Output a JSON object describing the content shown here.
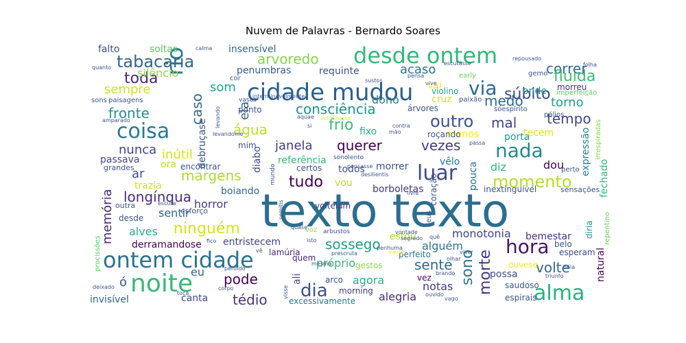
{
  "chart_data": {
    "type": "wordcloud",
    "title": "Nuvem de Palavras - Bernardo Soares",
    "words": [
      {
        "text": "texto texto",
        "color": "#2c6e8e"
      },
      {
        "text": "desde ontem",
        "color": "#35b779"
      },
      {
        "text": "cidade mudou",
        "color": "#2c5f8a"
      },
      {
        "text": "ontem cidade",
        "color": "#2d718e"
      },
      {
        "text": "noite",
        "color": "#37b878"
      },
      {
        "text": "coisa",
        "color": "#2a788e"
      },
      {
        "text": "alma",
        "color": "#2ab07f"
      },
      {
        "text": "hora",
        "color": "#471365"
      },
      {
        "text": "nada",
        "color": "#23898e"
      },
      {
        "text": "luar",
        "color": "#3e4a89"
      },
      {
        "text": "rio",
        "color": "#2a788e"
      },
      {
        "text": "momento",
        "color": "#b5de2b"
      },
      {
        "text": "tudo",
        "color": "#440154"
      },
      {
        "text": "via",
        "color": "#31668e"
      },
      {
        "text": "dia",
        "color": "#3b528b"
      },
      {
        "text": "tabacaria",
        "color": "#32648e"
      },
      {
        "text": "arvoredo",
        "color": "#84d44b"
      },
      {
        "text": "toda",
        "color": "#482878"
      },
      {
        "text": "consciência",
        "color": "#21918c"
      },
      {
        "text": "outro",
        "color": "#3b528b"
      },
      {
        "text": "correr",
        "color": "#31688e"
      },
      {
        "text": "súbito",
        "color": "#3e4989"
      },
      {
        "text": "fluida",
        "color": "#3dbc74"
      },
      {
        "text": "ninguém",
        "color": "#d8e219"
      },
      {
        "text": "longínqua",
        "color": "#472c7a"
      },
      {
        "text": "margens",
        "color": "#addc30"
      },
      {
        "text": "sossego",
        "color": "#1f9e89"
      },
      {
        "text": "sente",
        "color": "#31688e"
      },
      {
        "text": "volte",
        "color": "#31688e"
      },
      {
        "text": "pode",
        "color": "#440154"
      },
      {
        "text": "tédio",
        "color": "#46337e"
      },
      {
        "text": "sono",
        "color": "#2a788e"
      },
      {
        "text": "morte",
        "color": "#46337e"
      },
      {
        "text": "fronte",
        "color": "#21918c"
      },
      {
        "text": "frio",
        "color": "#3dbc74"
      },
      {
        "text": "mal",
        "color": "#414487"
      },
      {
        "text": "tempo",
        "color": "#404688"
      },
      {
        "text": "medo",
        "color": "#31688e"
      },
      {
        "text": "água",
        "color": "#bddf26"
      },
      {
        "text": "caso",
        "color": "#31688e"
      },
      {
        "text": "querer",
        "color": "#440154"
      },
      {
        "text": "vezes",
        "color": "#443983"
      },
      {
        "text": "janela",
        "color": "#443983"
      },
      {
        "text": "nunca",
        "color": "#414487"
      },
      {
        "text": "inútil",
        "color": "#d8e219"
      },
      {
        "text": "sempre",
        "color": "#d2e21b"
      },
      {
        "text": "ela",
        "color": "#35608d"
      },
      {
        "text": "som",
        "color": "#22a884"
      },
      {
        "text": "acaso",
        "color": "#2c728e"
      },
      {
        "text": "torno",
        "color": "#1fa188"
      },
      {
        "text": "memória",
        "color": "#472a7a"
      },
      {
        "text": "agora",
        "color": "#29af7f"
      },
      {
        "text": "ar",
        "color": "#3b528b"
      },
      {
        "text": "ó",
        "color": "#3b528b"
      },
      {
        "text": "ora",
        "color": "#bddf26"
      },
      {
        "text": "monotonia",
        "color": "#414487"
      },
      {
        "text": "alguém",
        "color": "#2c728e"
      },
      {
        "text": "próprio",
        "color": "#35b779"
      },
      {
        "text": "alegria",
        "color": "#482878"
      },
      {
        "text": "notas",
        "color": "#443983"
      },
      {
        "text": "eu",
        "color": "#31688e"
      },
      {
        "text": "diz",
        "color": "#35b779"
      },
      {
        "text": "dou",
        "color": "#440154"
      },
      {
        "text": "vou",
        "color": "#bddf26"
      },
      {
        "text": "estou",
        "color": "#addc30"
      },
      {
        "text": "alves",
        "color": "#2ab07f"
      },
      {
        "text": "canta",
        "color": "#3e4989"
      },
      {
        "text": "horror",
        "color": "#443983"
      },
      {
        "text": "sentir",
        "color": "#31688e"
      },
      {
        "text": "soltas",
        "color": "#5ec962"
      },
      {
        "text": "falto",
        "color": "#3b528b"
      },
      {
        "text": "insensível",
        "color": "#33638d"
      },
      {
        "text": "penumbras",
        "color": "#38598c"
      },
      {
        "text": "requinte",
        "color": "#3b528b"
      },
      {
        "text": "silêncio",
        "color": "#90d743"
      },
      {
        "text": "dono",
        "color": "#287c8e"
      },
      {
        "text": "fixo",
        "color": "#2ab07f"
      },
      {
        "text": "cruz",
        "color": "#d5e21a"
      },
      {
        "text": "onde",
        "color": "#21918c"
      },
      {
        "text": "porta",
        "color": "#1f988b"
      },
      {
        "text": "menos",
        "color": "#fde725"
      },
      {
        "text": "tecem",
        "color": "#dde318"
      },
      {
        "text": "passava",
        "color": "#414487"
      },
      {
        "text": "trazia",
        "color": "#d8e219"
      },
      {
        "text": "referência",
        "color": "#35b779"
      },
      {
        "text": "todos",
        "color": "#3b528b"
      },
      {
        "text": "morrer",
        "color": "#3b528b"
      },
      {
        "text": "vêlo",
        "color": "#2a788e"
      },
      {
        "text": "pouca",
        "color": "#2c728e"
      },
      {
        "text": "boiando",
        "color": "#31688e"
      },
      {
        "text": "borboletas",
        "color": "#443983"
      },
      {
        "text": "bemestar",
        "color": "#46337e"
      },
      {
        "text": "expressão",
        "color": "#287d8e"
      },
      {
        "text": "fechado",
        "color": "#2fb47c"
      },
      {
        "text": "entristecem",
        "color": "#414487"
      },
      {
        "text": "derramandose",
        "color": "#440154"
      },
      {
        "text": "ali",
        "color": "#414487"
      },
      {
        "text": "diabo",
        "color": "#3e4989"
      },
      {
        "text": "volteiam",
        "color": "#443983"
      },
      {
        "text": "natural",
        "color": "#440154"
      },
      {
        "text": "possa",
        "color": "#3e4a89"
      },
      {
        "text": "invisível",
        "color": "#33638d"
      },
      {
        "text": "desde",
        "color": "#3b528b"
      },
      {
        "text": "vai",
        "color": "#fde725"
      },
      {
        "text": "violino",
        "color": "#1f9e89"
      },
      {
        "text": "morreu",
        "color": "#46327e"
      },
      {
        "text": "árvores",
        "color": "#3b528b"
      },
      {
        "text": "encontrar",
        "color": "#3b528b"
      },
      {
        "text": "certos",
        "color": "#3b528b"
      },
      {
        "text": "gestos",
        "color": "#8fd744"
      },
      {
        "text": "perfeito",
        "color": "#2c728e"
      },
      {
        "text": "arco",
        "color": "#3b528b"
      },
      {
        "text": "quem",
        "color": "#482878"
      },
      {
        "text": "lamúria",
        "color": "#482878"
      },
      {
        "text": "vez",
        "color": "#440154"
      },
      {
        "text": "saudoso",
        "color": "#3b528b"
      },
      {
        "text": "espirais",
        "color": "#3b528b"
      },
      {
        "text": "morning",
        "color": "#443983"
      },
      {
        "text": "excessivamente",
        "color": "#2a788e"
      },
      {
        "text": "esperam",
        "color": "#3e4989"
      },
      {
        "text": "ouvese",
        "color": "#fde725"
      },
      {
        "text": "belo",
        "color": "#3b528b"
      },
      {
        "text": "diria",
        "color": "#21918c"
      },
      {
        "text": "repentino",
        "color": "#6ece58"
      },
      {
        "text": "irrespiradas",
        "color": "#84d44b"
      },
      {
        "text": "inextinguível",
        "color": "#3b528b"
      },
      {
        "text": "sensações",
        "color": "#3b528b"
      },
      {
        "text": "perto",
        "color": "#3b528b"
      },
      {
        "text": "grandes",
        "color": "#3b528b"
      },
      {
        "text": "outra",
        "color": "#3b528b"
      },
      {
        "text": "esforço",
        "color": "#3b528b"
      },
      {
        "text": "procissões",
        "color": "#5ec962"
      },
      {
        "text": "paisagens",
        "color": "#3b528b"
      },
      {
        "text": "sons",
        "color": "#3b528b"
      },
      {
        "text": "imperfeição",
        "color": "#5ec962"
      },
      {
        "text": "pálios",
        "color": "#3b528b"
      },
      {
        "text": "sóespírito",
        "color": "#3b528b"
      },
      {
        "text": "paixão",
        "color": "#3b528b"
      },
      {
        "text": "gemo",
        "color": "#3b528b"
      },
      {
        "text": "cor",
        "color": "#3b528b"
      },
      {
        "text": "ponto",
        "color": "#3b528b"
      },
      {
        "text": "mim",
        "color": "#3b528b"
      },
      {
        "text": "roçando",
        "color": "#3b528b"
      },
      {
        "text": "sonolento",
        "color": "#3b528b"
      },
      {
        "text": "mundo",
        "color": "#3b528b"
      },
      {
        "text": "voz",
        "color": "#8fd744"
      },
      {
        "text": "arbustos",
        "color": "#3b528b"
      },
      {
        "text": "early",
        "color": "#6ece58"
      },
      {
        "text": "vasas",
        "color": "#3b528b"
      },
      {
        "text": "debruçase",
        "color": "#3b528b"
      },
      {
        "text": "repousado",
        "color": "#3b528b"
      },
      {
        "text": "escutasse",
        "color": "#3b528b"
      },
      {
        "text": "calma",
        "color": "#3b528b"
      },
      {
        "text": "quanto",
        "color": "#3b528b"
      },
      {
        "text": "folha",
        "color": "#3b528b"
      },
      {
        "text": "pensa",
        "color": "#3b528b"
      },
      {
        "text": "sustos",
        "color": "#3b528b"
      },
      {
        "text": "vive",
        "color": "#3b528b"
      },
      {
        "text": "interminavelmente",
        "color": "#3b528b"
      },
      {
        "text": "aquae",
        "color": "#3b528b"
      },
      {
        "text": "levandome",
        "color": "#3b528b"
      },
      {
        "text": "amparado",
        "color": "#3b528b"
      },
      {
        "text": "levando",
        "color": "#3b528b"
      },
      {
        "text": "si",
        "color": "#3b528b"
      },
      {
        "text": "voluptuosa",
        "color": "#fde725"
      },
      {
        "text": "contra",
        "color": "#3b528b"
      },
      {
        "text": "mão",
        "color": "#3b528b"
      },
      {
        "text": "passa",
        "color": "#3b528b"
      },
      {
        "text": "pensasse",
        "color": "#3b528b"
      },
      {
        "text": "desilientis",
        "color": "#3b528b"
      },
      {
        "text": "livre",
        "color": "#3b528b"
      },
      {
        "text": "deus",
        "color": "#3b528b"
      },
      {
        "text": "coração",
        "color": "#3b528b"
      },
      {
        "text": "semitis",
        "color": "#3b528b"
      },
      {
        "text": "escuta",
        "color": "#3b528b"
      },
      {
        "text": "quase",
        "color": "#3b528b"
      },
      {
        "text": "vontade",
        "color": "#3b528b"
      },
      {
        "text": "segredo",
        "color": "#3b528b"
      },
      {
        "text": "quê",
        "color": "#3b528b"
      },
      {
        "text": "isto",
        "color": "#3b528b"
      },
      {
        "text": "fico",
        "color": "#3b528b"
      },
      {
        "text": "inerte",
        "color": "#fde725"
      },
      {
        "text": "viver",
        "color": "#3b528b"
      },
      {
        "text": "olhar",
        "color": "#3b528b"
      },
      {
        "text": "bóia",
        "color": "#3b528b"
      },
      {
        "text": "triunfo",
        "color": "#3b528b"
      },
      {
        "text": "brando",
        "color": "#3b528b"
      },
      {
        "text": "ouvido",
        "color": "#3b528b"
      },
      {
        "text": "vago",
        "color": "#3b528b"
      },
      {
        "text": "penhuma",
        "color": "#3b528b"
      },
      {
        "text": "visse",
        "color": "#3b528b"
      },
      {
        "text": "mesma",
        "color": "#3b528b"
      },
      {
        "text": "perdido",
        "color": "#3b528b"
      },
      {
        "text": "corpo",
        "color": "#3b528b"
      },
      {
        "text": "deixado",
        "color": "#3b528b"
      },
      {
        "text": "toca",
        "color": "#3b528b"
      },
      {
        "text": "vê",
        "color": "#3b528b"
      },
      {
        "text": "prescruta",
        "color": "#3b528b"
      }
    ]
  }
}
